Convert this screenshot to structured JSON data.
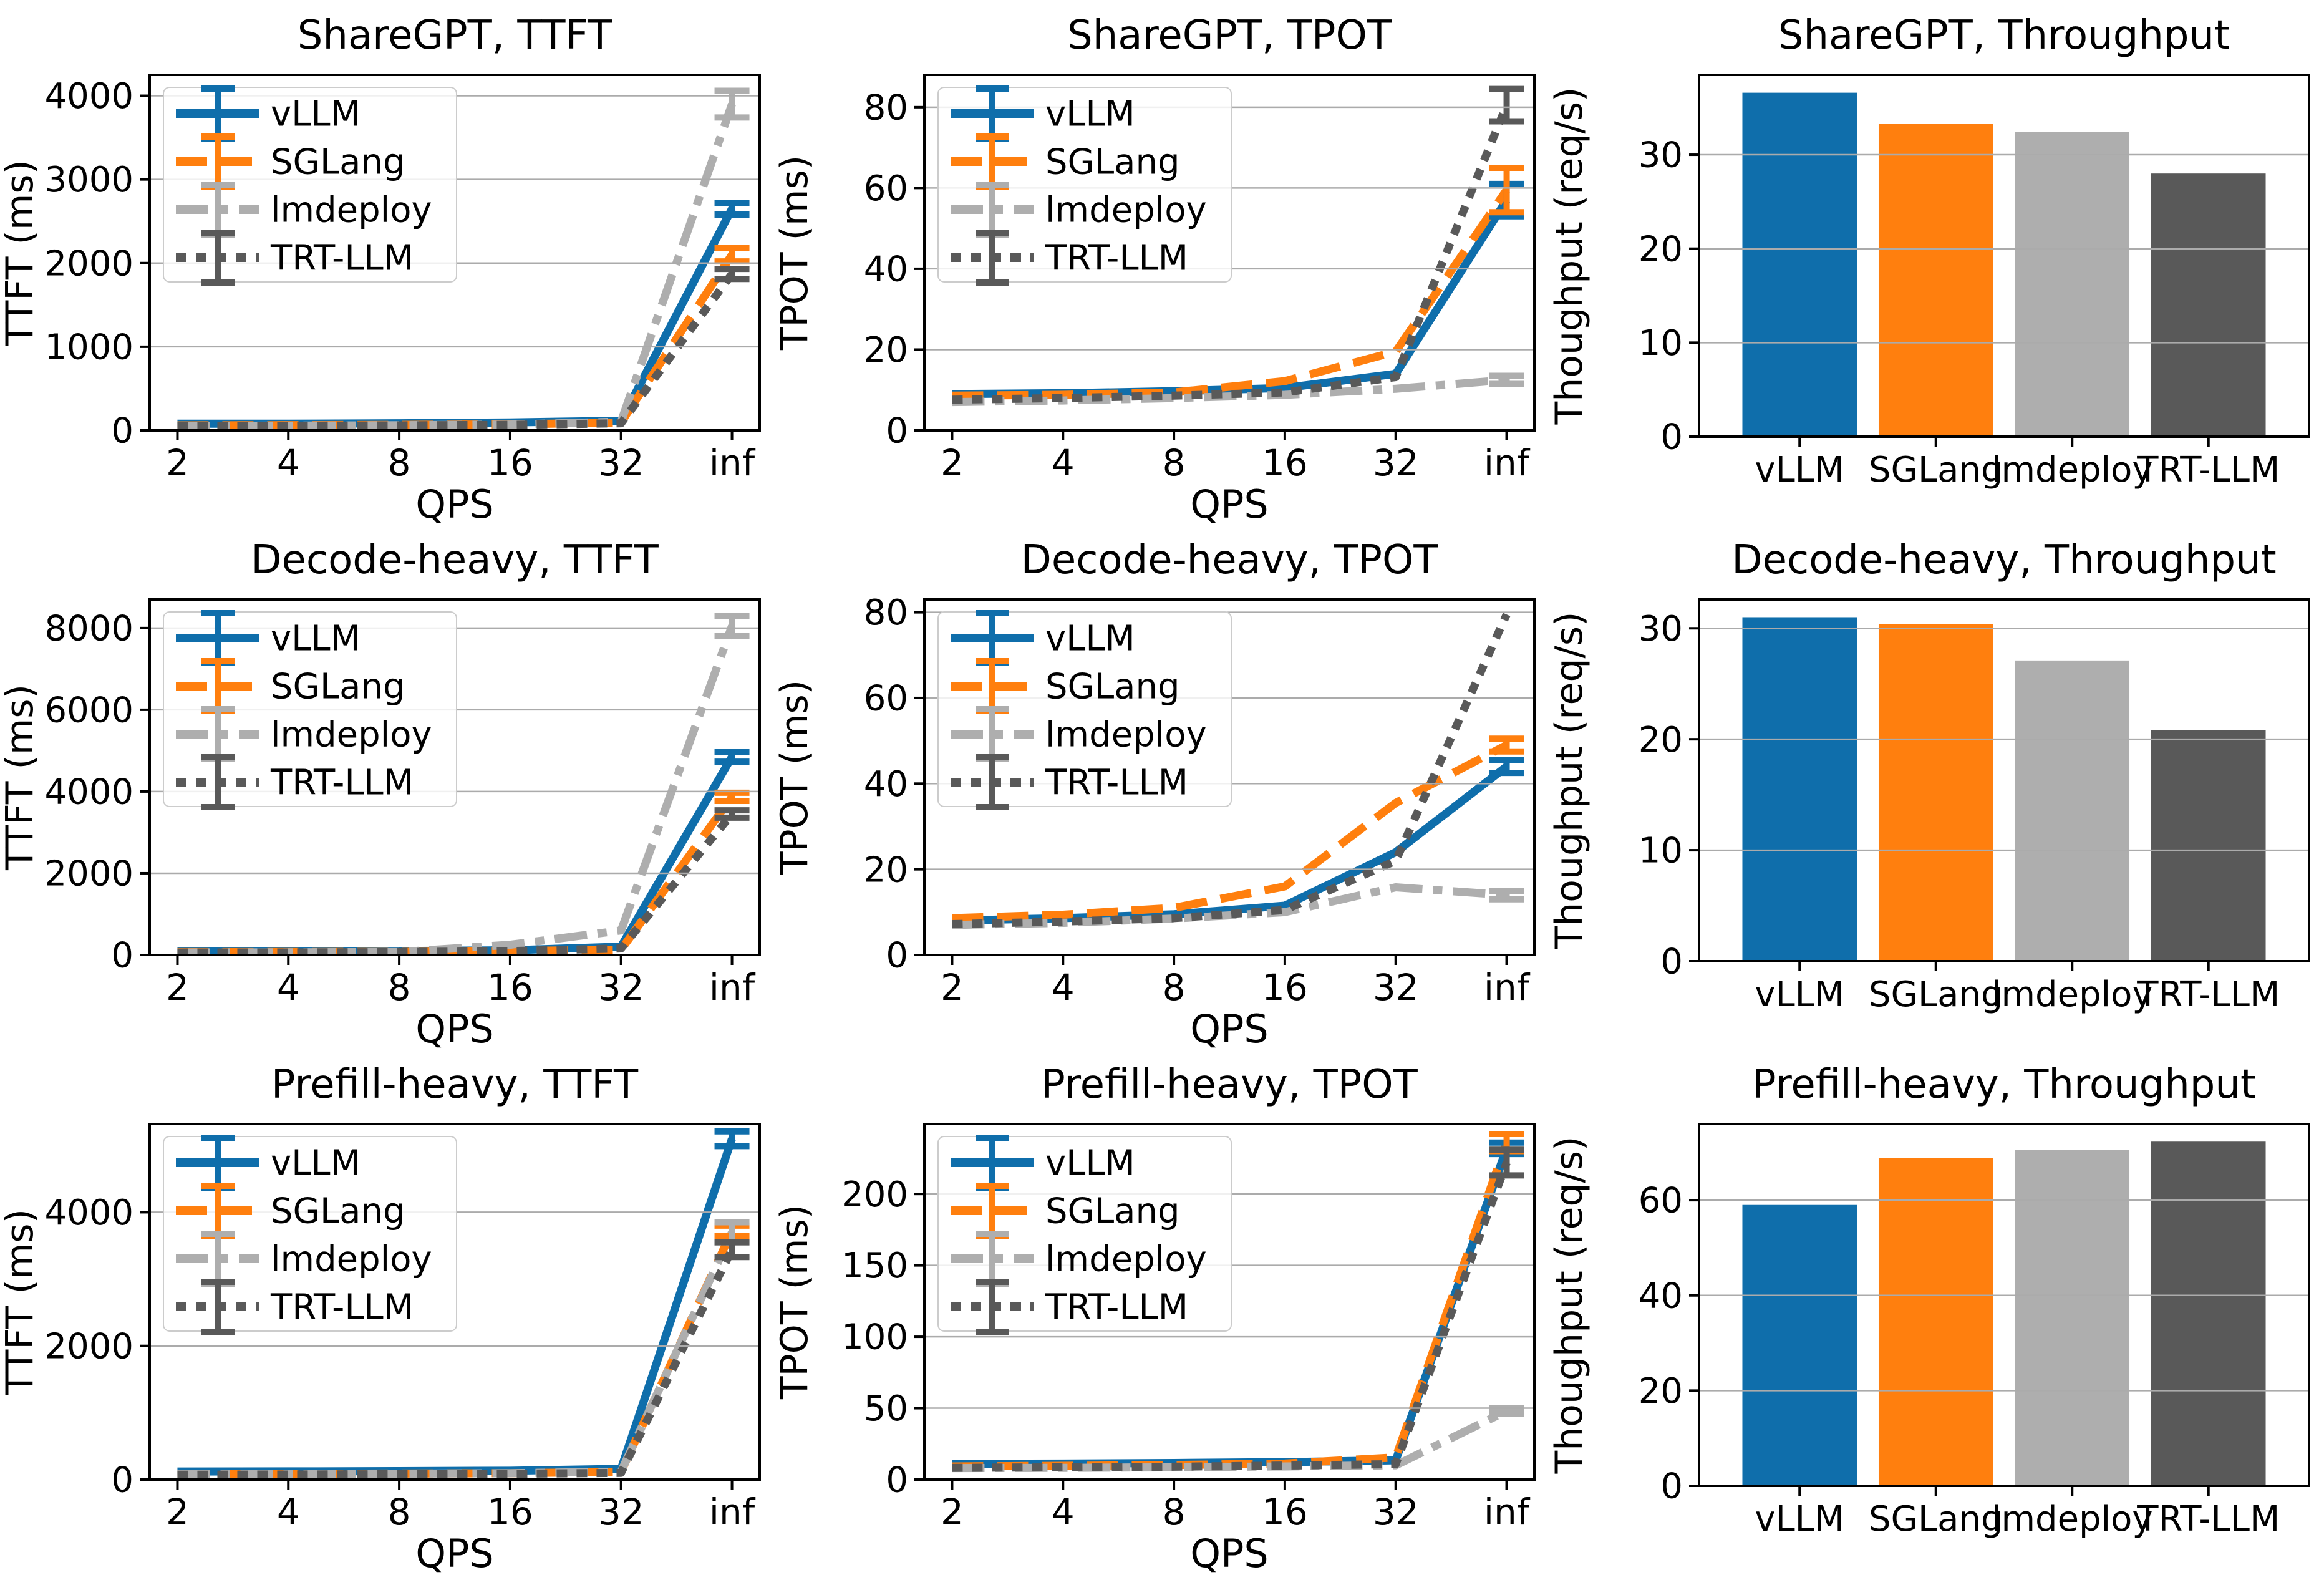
{
  "figure": {
    "background": "#ffffff",
    "grid_color": "#ababab",
    "spine_color": "#000000",
    "legend_border_color": "#cccccc",
    "legend_background": "#ffffff"
  },
  "series_meta": [
    {
      "name": "vLLM",
      "color": "#0f6eab",
      "dash": "solid"
    },
    {
      "name": "SGLang",
      "color": "#ff7f0e",
      "dash": "dashed"
    },
    {
      "name": "lmdeploy",
      "color": "#aeaeae",
      "dash": "dashdot"
    },
    {
      "name": "TRT-LLM",
      "color": "#595959",
      "dash": "dotted"
    }
  ],
  "chart_data": [
    {
      "id": "sharegpt-ttft",
      "type": "line",
      "title": "ShareGPT, TTFT",
      "xlabel": "QPS",
      "ylabel": "TTFT (ms)",
      "x_categories": [
        "2",
        "4",
        "8",
        "16",
        "32",
        "inf"
      ],
      "yticks": [
        0,
        1000,
        2000,
        3000,
        4000
      ],
      "ylim": [
        0,
        4250
      ],
      "legend": true,
      "grid": true,
      "series": [
        {
          "name": "vLLM",
          "values": [
            80,
            80,
            85,
            95,
            115,
            2650
          ],
          "errors": [
            0,
            0,
            0,
            0,
            0,
            70
          ]
        },
        {
          "name": "SGLang",
          "values": [
            60,
            62,
            66,
            72,
            95,
            2100
          ],
          "errors": [
            0,
            0,
            0,
            0,
            0,
            80
          ]
        },
        {
          "name": "lmdeploy",
          "values": [
            55,
            57,
            62,
            70,
            105,
            3900
          ],
          "errors": [
            0,
            0,
            0,
            0,
            0,
            160
          ]
        },
        {
          "name": "TRT-LLM",
          "values": [
            55,
            56,
            60,
            66,
            85,
            1870
          ],
          "errors": [
            0,
            0,
            0,
            0,
            0,
            60
          ]
        }
      ]
    },
    {
      "id": "sharegpt-tpot",
      "type": "line",
      "title": "ShareGPT, TPOT",
      "xlabel": "QPS",
      "ylabel": "TPOT (ms)",
      "x_categories": [
        "2",
        "4",
        "8",
        "16",
        "32",
        "inf"
      ],
      "yticks": [
        0,
        20,
        40,
        60,
        80
      ],
      "ylim": [
        0,
        88
      ],
      "legend": true,
      "grid": true,
      "series": [
        {
          "name": "vLLM",
          "values": [
            9.0,
            9.2,
            9.7,
            10.5,
            14.0,
            57.0
          ],
          "errors": [
            0,
            0,
            0,
            0,
            0,
            4
          ]
        },
        {
          "name": "SGLang",
          "values": [
            8.6,
            8.8,
            9.4,
            12.2,
            19.5,
            59.5
          ],
          "errors": [
            0,
            0,
            0,
            0,
            0,
            5.5
          ]
        },
        {
          "name": "lmdeploy",
          "values": [
            7.0,
            7.4,
            8.0,
            8.8,
            10.3,
            12.5
          ],
          "errors": [
            0,
            0,
            0,
            0,
            0,
            1
          ]
        },
        {
          "name": "TRT-LLM",
          "values": [
            7.6,
            8.0,
            8.6,
            9.4,
            13.2,
            80.5
          ],
          "errors": [
            0,
            0,
            0,
            0,
            0,
            4
          ]
        }
      ]
    },
    {
      "id": "sharegpt-throughput",
      "type": "bar",
      "title": "ShareGPT, Throughput",
      "ylabel": "Thoughput (req/s)",
      "categories": [
        "vLLM",
        "SGLang",
        "lmdeploy",
        "TRT-LLM"
      ],
      "values": [
        36.6,
        33.3,
        32.4,
        28.0
      ],
      "yticks": [
        0,
        10,
        20,
        30
      ],
      "ylim": [
        0,
        38.5
      ],
      "legend": false,
      "grid": true
    },
    {
      "id": "decode-heavy-ttft",
      "type": "line",
      "title": "Decode-heavy, TTFT",
      "xlabel": "QPS",
      "ylabel": "TTFT (ms)",
      "x_categories": [
        "2",
        "4",
        "8",
        "16",
        "32",
        "inf"
      ],
      "yticks": [
        0,
        2000,
        4000,
        6000,
        8000
      ],
      "ylim": [
        0,
        8700
      ],
      "legend": true,
      "grid": true,
      "series": [
        {
          "name": "vLLM",
          "values": [
            90,
            92,
            96,
            115,
            205,
            4850
          ],
          "errors": [
            0,
            0,
            0,
            0,
            0,
            120
          ]
        },
        {
          "name": "SGLang",
          "values": [
            70,
            72,
            76,
            95,
            130,
            3870
          ],
          "errors": [
            0,
            0,
            0,
            0,
            0,
            100
          ]
        },
        {
          "name": "lmdeploy",
          "values": [
            62,
            65,
            72,
            250,
            600,
            8050
          ],
          "errors": [
            0,
            0,
            0,
            0,
            0,
            250
          ]
        },
        {
          "name": "TRT-LLM",
          "values": [
            60,
            62,
            70,
            95,
            160,
            3450
          ],
          "errors": [
            0,
            0,
            0,
            0,
            0,
            90
          ]
        }
      ]
    },
    {
      "id": "decode-heavy-tpot",
      "type": "line",
      "title": "Decode-heavy, TPOT",
      "xlabel": "QPS",
      "ylabel": "TPOT (ms)",
      "x_categories": [
        "2",
        "4",
        "8",
        "16",
        "32",
        "inf"
      ],
      "yticks": [
        0,
        20,
        40,
        60,
        80
      ],
      "ylim": [
        0,
        83
      ],
      "legend": true,
      "grid": true,
      "series": [
        {
          "name": "vLLM",
          "values": [
            8.0,
            8.6,
            9.5,
            11.5,
            24.0,
            44.0
          ],
          "errors": [
            0,
            0,
            0,
            0,
            0,
            1.5
          ]
        },
        {
          "name": "SGLang",
          "values": [
            8.6,
            9.4,
            11.0,
            16.0,
            35.5,
            49.0
          ],
          "errors": [
            0,
            0,
            0,
            0,
            0,
            1.5
          ]
        },
        {
          "name": "lmdeploy",
          "values": [
            7.0,
            7.5,
            8.5,
            10.0,
            15.8,
            14.0
          ],
          "errors": [
            0,
            0,
            0,
            0,
            0,
            1
          ]
        },
        {
          "name": "TRT-LLM",
          "values": [
            7.2,
            7.8,
            8.6,
            10.5,
            22.0,
            79.5
          ],
          "errors": [
            0,
            0,
            0,
            0,
            0,
            0
          ]
        }
      ]
    },
    {
      "id": "decode-heavy-throughput",
      "type": "bar",
      "title": "Decode-heavy, Throughput",
      "ylabel": "Thoughput (req/s)",
      "categories": [
        "vLLM",
        "SGLang",
        "lmdeploy",
        "TRT-LLM"
      ],
      "values": [
        31.0,
        30.4,
        27.1,
        20.8
      ],
      "yticks": [
        0,
        10,
        20,
        30
      ],
      "ylim": [
        0,
        32.6
      ],
      "legend": false,
      "grid": true
    },
    {
      "id": "prefill-heavy-ttft",
      "type": "line",
      "title": "Prefill-heavy, TTFT",
      "xlabel": "QPS",
      "ylabel": "TTFT (ms)",
      "x_categories": [
        "2",
        "4",
        "8",
        "16",
        "32",
        "inf"
      ],
      "yticks": [
        0,
        2000,
        4000
      ],
      "ylim": [
        0,
        5320
      ],
      "legend": true,
      "grid": true,
      "series": [
        {
          "name": "vLLM",
          "values": [
            120,
            122,
            126,
            132,
            160,
            5100
          ],
          "errors": [
            0,
            0,
            0,
            0,
            0,
            110
          ]
        },
        {
          "name": "SGLang",
          "values": [
            85,
            86,
            90,
            95,
            115,
            3720
          ],
          "errors": [
            0,
            0,
            0,
            0,
            0,
            80
          ]
        },
        {
          "name": "lmdeploy",
          "values": [
            82,
            84,
            88,
            95,
            120,
            3700
          ],
          "errors": [
            0,
            0,
            0,
            0,
            0,
            150
          ]
        },
        {
          "name": "TRT-LLM",
          "values": [
            72,
            75,
            80,
            86,
            100,
            3440
          ],
          "errors": [
            0,
            0,
            0,
            0,
            0,
            110
          ]
        }
      ]
    },
    {
      "id": "prefill-heavy-tpot",
      "type": "line",
      "title": "Prefill-heavy, TPOT",
      "xlabel": "QPS",
      "ylabel": "TPOT (ms)",
      "x_categories": [
        "2",
        "4",
        "8",
        "16",
        "32",
        "inf"
      ],
      "yticks": [
        0,
        50,
        100,
        150,
        200
      ],
      "ylim": [
        0,
        249
      ],
      "legend": true,
      "grid": true,
      "series": [
        {
          "name": "vLLM",
          "values": [
            11.0,
            11.2,
            11.6,
            12.2,
            13.5,
            232.0
          ],
          "errors": [
            0,
            0,
            0,
            0,
            0,
            4
          ]
        },
        {
          "name": "SGLang",
          "values": [
            9.2,
            9.6,
            10.2,
            11.2,
            15.5,
            236.0
          ],
          "errors": [
            0,
            0,
            0,
            0,
            0,
            6
          ]
        },
        {
          "name": "lmdeploy",
          "values": [
            8.0,
            8.2,
            8.6,
            9.2,
            10.0,
            48.0
          ],
          "errors": [
            0,
            0,
            0,
            0,
            0,
            2
          ]
        },
        {
          "name": "TRT-LLM",
          "values": [
            8.2,
            8.6,
            9.0,
            9.8,
            10.8,
            222.0
          ],
          "errors": [
            0,
            0,
            0,
            0,
            0,
            9
          ]
        }
      ]
    },
    {
      "id": "prefill-heavy-throughput",
      "type": "bar",
      "title": "Prefill-heavy, Throughput",
      "ylabel": "Thoughput (req/s)",
      "categories": [
        "vLLM",
        "SGLang",
        "lmdeploy",
        "TRT-LLM"
      ],
      "values": [
        59.0,
        68.8,
        70.6,
        72.3
      ],
      "yticks": [
        0,
        20,
        40,
        60
      ],
      "ylim": [
        0,
        76
      ],
      "legend": false,
      "grid": true
    }
  ]
}
